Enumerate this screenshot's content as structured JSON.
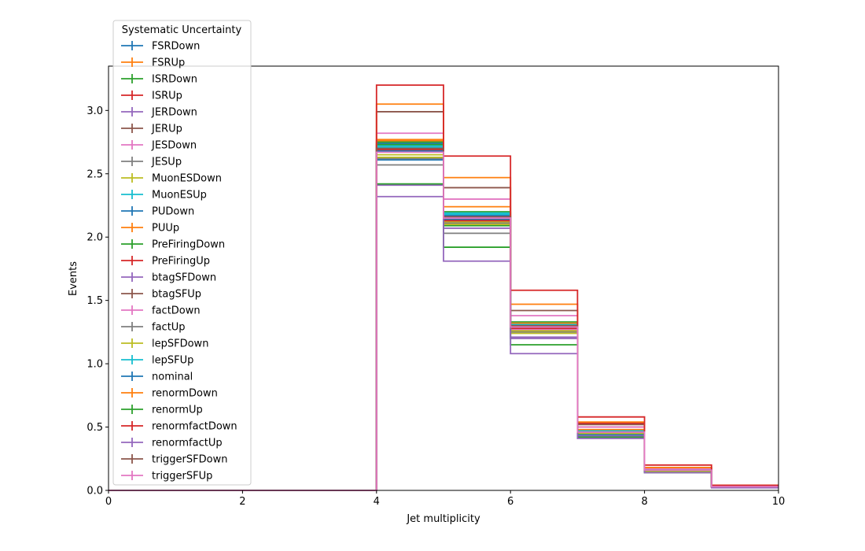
{
  "chart_data": {
    "type": "line",
    "xlabel": "Jet multiplicity",
    "ylabel": "Events",
    "xlim": [
      0,
      10
    ],
    "ylim": [
      0,
      3.35
    ],
    "xticks": [
      0,
      2,
      4,
      6,
      8,
      10
    ],
    "xtick_labels": [
      "0",
      "2",
      "4",
      "6",
      "8",
      "10"
    ],
    "yticks": [
      0,
      0.5,
      1.0,
      1.5,
      2.0,
      2.5,
      3.0
    ],
    "ytick_labels": [
      "0.0",
      "0.5",
      "1.0",
      "1.5",
      "2.0",
      "2.5",
      "3.0"
    ],
    "grid": false,
    "legend_title": "Systematic Uncertainty",
    "legend_position": "top-left",
    "bin_edges": [
      0,
      1,
      2,
      3,
      4,
      5,
      6,
      7,
      8,
      9,
      10
    ],
    "series": [
      {
        "name": "FSRDown",
        "color": "#1f77b4",
        "values": [
          0,
          0,
          0,
          0,
          2.74,
          2.17,
          1.29,
          0.46,
          0.16,
          0.03
        ]
      },
      {
        "name": "FSRUp",
        "color": "#ff7f0e",
        "values": [
          0,
          0,
          0,
          0,
          2.76,
          2.11,
          1.31,
          0.47,
          0.17,
          0.03
        ]
      },
      {
        "name": "ISRDown",
        "color": "#2ca02c",
        "values": [
          0,
          0,
          0,
          0,
          2.75,
          2.2,
          1.33,
          0.45,
          0.16,
          0.03
        ]
      },
      {
        "name": "ISRUp",
        "color": "#d62728",
        "values": [
          0,
          0,
          0,
          0,
          2.68,
          2.16,
          1.31,
          0.53,
          0.17,
          0.03
        ]
      },
      {
        "name": "JERDown",
        "color": "#9467bd",
        "values": [
          0,
          0,
          0,
          0,
          2.7,
          2.15,
          1.2,
          0.45,
          0.15,
          0.03
        ]
      },
      {
        "name": "JERUp",
        "color": "#8c564b",
        "values": [
          0,
          0,
          0,
          0,
          2.72,
          2.13,
          1.3,
          0.5,
          0.16,
          0.03
        ]
      },
      {
        "name": "JESDown",
        "color": "#e377c2",
        "values": [
          0,
          0,
          0,
          0,
          2.69,
          2.1,
          1.27,
          0.47,
          0.15,
          0.03
        ]
      },
      {
        "name": "JESUp",
        "color": "#7f7f7f",
        "values": [
          0,
          0,
          0,
          0,
          2.57,
          2.03,
          1.25,
          0.46,
          0.16,
          0.03
        ]
      },
      {
        "name": "MuonESDown",
        "color": "#bcbd22",
        "values": [
          0,
          0,
          0,
          0,
          2.65,
          2.12,
          1.24,
          0.44,
          0.16,
          0.03
        ]
      },
      {
        "name": "MuonESUp",
        "color": "#17becf",
        "values": [
          0,
          0,
          0,
          0,
          2.71,
          2.19,
          1.28,
          0.46,
          0.16,
          0.03
        ]
      },
      {
        "name": "PUDown",
        "color": "#1f77b4",
        "values": [
          0,
          0,
          0,
          0,
          2.61,
          2.14,
          1.3,
          0.44,
          0.16,
          0.03
        ]
      },
      {
        "name": "PUUp",
        "color": "#ff7f0e",
        "values": [
          0,
          0,
          0,
          0,
          2.77,
          2.24,
          1.32,
          0.48,
          0.16,
          0.03
        ]
      },
      {
        "name": "PreFiringDown",
        "color": "#2ca02c",
        "values": [
          0,
          0,
          0,
          0,
          2.73,
          2.09,
          1.29,
          0.45,
          0.16,
          0.03
        ]
      },
      {
        "name": "PreFiringUp",
        "color": "#d62728",
        "values": [
          0,
          0,
          0,
          0,
          2.69,
          2.13,
          1.28,
          0.46,
          0.16,
          0.03
        ]
      },
      {
        "name": "btagSFDown",
        "color": "#9467bd",
        "values": [
          0,
          0,
          0,
          0,
          2.41,
          2.07,
          1.21,
          0.43,
          0.15,
          0.03
        ]
      },
      {
        "name": "btagSFUp",
        "color": "#8c564b",
        "values": [
          0,
          0,
          0,
          0,
          2.99,
          2.39,
          1.42,
          0.52,
          0.18,
          0.04
        ]
      },
      {
        "name": "factDown",
        "color": "#e377c2",
        "values": [
          0,
          0,
          0,
          0,
          2.82,
          2.3,
          1.38,
          0.5,
          0.17,
          0.03
        ]
      },
      {
        "name": "factUp",
        "color": "#7f7f7f",
        "values": [
          0,
          0,
          0,
          0,
          2.62,
          2.11,
          1.26,
          0.45,
          0.15,
          0.03
        ]
      },
      {
        "name": "lepSFDown",
        "color": "#bcbd22",
        "values": [
          0,
          0,
          0,
          0,
          2.63,
          2.1,
          1.26,
          0.45,
          0.15,
          0.03
        ]
      },
      {
        "name": "lepSFUp",
        "color": "#17becf",
        "values": [
          0,
          0,
          0,
          0,
          2.72,
          2.18,
          1.31,
          0.47,
          0.16,
          0.03
        ]
      },
      {
        "name": "nominal",
        "color": "#1f77b4",
        "values": [
          0,
          0,
          0,
          0,
          2.68,
          2.15,
          1.29,
          0.46,
          0.16,
          0.03
        ]
      },
      {
        "name": "renormDown",
        "color": "#ff7f0e",
        "values": [
          0,
          0,
          0,
          0,
          3.05,
          2.47,
          1.47,
          0.54,
          0.18,
          0.04
        ]
      },
      {
        "name": "renormUp",
        "color": "#2ca02c",
        "values": [
          0,
          0,
          0,
          0,
          2.42,
          1.92,
          1.15,
          0.42,
          0.14,
          0.03
        ]
      },
      {
        "name": "renormfactDown",
        "color": "#d62728",
        "values": [
          0,
          0,
          0,
          0,
          3.2,
          2.64,
          1.58,
          0.58,
          0.2,
          0.04
        ]
      },
      {
        "name": "renormfactUp",
        "color": "#9467bd",
        "values": [
          0,
          0,
          0,
          0,
          2.32,
          1.81,
          1.08,
          0.41,
          0.14,
          0.02
        ]
      },
      {
        "name": "triggerSFDown",
        "color": "#8c564b",
        "values": [
          0,
          0,
          0,
          0,
          2.7,
          2.16,
          1.3,
          0.46,
          0.16,
          0.03
        ]
      },
      {
        "name": "triggerSFUp",
        "color": "#e377c2",
        "values": [
          0,
          0,
          0,
          0,
          2.67,
          2.15,
          1.29,
          0.46,
          0.16,
          0.03
        ]
      }
    ]
  }
}
